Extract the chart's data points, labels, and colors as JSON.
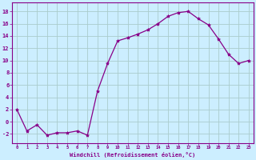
{
  "x": [
    0,
    1,
    2,
    3,
    4,
    5,
    6,
    7,
    8,
    9,
    10,
    11,
    12,
    13,
    14,
    15,
    16,
    17,
    18,
    19,
    20,
    21,
    22,
    23
  ],
  "y": [
    2,
    -1.5,
    -0.5,
    -2.2,
    -1.8,
    -1.8,
    -1.5,
    -2.2,
    5,
    9.5,
    13.2,
    13.7,
    14.3,
    15.0,
    16.0,
    17.2,
    17.8,
    18.0,
    16.8,
    15.8,
    13.5,
    11.0,
    9.5,
    10.0
  ],
  "line_color": "#880088",
  "marker": "*",
  "marker_size": 3,
  "bg_color": "#cceeff",
  "grid_color": "#aacccc",
  "xlabel": "Windchill (Refroidissement éolien,°C)",
  "xlabel_color": "#880088",
  "tick_color": "#880088",
  "ylim": [
    -3.5,
    19.5
  ],
  "xlim": [
    -0.5,
    23.5
  ],
  "yticks": [
    -2,
    0,
    2,
    4,
    6,
    8,
    10,
    12,
    14,
    16,
    18
  ],
  "xticks": [
    0,
    1,
    2,
    3,
    4,
    5,
    6,
    7,
    8,
    9,
    10,
    11,
    12,
    13,
    14,
    15,
    16,
    17,
    18,
    19,
    20,
    21,
    22,
    23
  ]
}
